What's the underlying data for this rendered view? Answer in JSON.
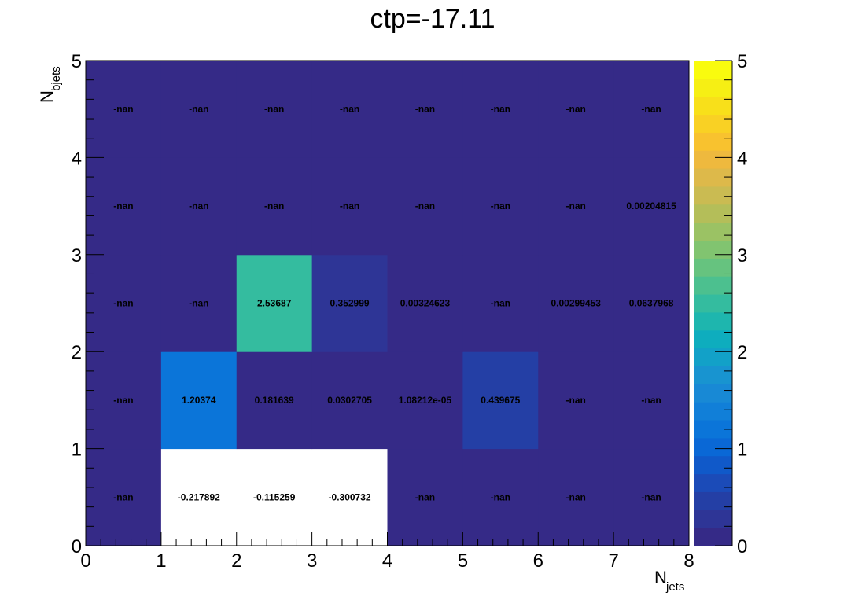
{
  "chart_data": {
    "type": "heatmap",
    "title": "ctp=-17.11",
    "xlabel": {
      "main": "N",
      "sub": "jets"
    },
    "ylabel": {
      "main": "N",
      "sub": "bjets"
    },
    "x_edges": [
      0,
      1,
      2,
      3,
      4,
      5,
      6,
      7,
      8
    ],
    "y_edges": [
      0,
      1,
      2,
      3,
      4,
      5
    ],
    "x_ticks": [
      "0",
      "1",
      "2",
      "3",
      "4",
      "5",
      "6",
      "7",
      "8"
    ],
    "y_ticks": [
      "0",
      "1",
      "2",
      "3",
      "4",
      "5"
    ],
    "xlim": [
      0,
      8
    ],
    "ylim": [
      0,
      5
    ],
    "zlim": [
      0,
      5
    ],
    "z_ticks": [
      "0",
      "1",
      "2",
      "3",
      "4",
      "5"
    ],
    "colormap": "parula",
    "palette": [
      "#352a87",
      "#2e3596",
      "#243fa5",
      "#1b4bb8",
      "#1059c9",
      "#0a68d6",
      "#0b75d9",
      "#117fd8",
      "#1889d5",
      "#1894d0",
      "#12a1c8",
      "#0eadbe",
      "#1eb6ae",
      "#34bc9f",
      "#4cc08f",
      "#66c37f",
      "#81c470",
      "#9bc264",
      "#b4be59",
      "#cabb52",
      "#ddb94a",
      "#eeb93e",
      "#f8c22f",
      "#f9d124",
      "#f8e01a",
      "#f6ef14",
      "#f9fb0e"
    ],
    "empty_color": "#ffffff",
    "cells": [
      {
        "x": 0,
        "y": 0,
        "value": null,
        "label": "-nan"
      },
      {
        "x": 1,
        "y": 0,
        "value": -0.217892,
        "label": "-0.217892"
      },
      {
        "x": 2,
        "y": 0,
        "value": -0.115259,
        "label": "-0.115259"
      },
      {
        "x": 3,
        "y": 0,
        "value": -0.300732,
        "label": "-0.300732"
      },
      {
        "x": 4,
        "y": 0,
        "value": null,
        "label": "-nan"
      },
      {
        "x": 5,
        "y": 0,
        "value": null,
        "label": "-nan"
      },
      {
        "x": 6,
        "y": 0,
        "value": null,
        "label": "-nan"
      },
      {
        "x": 7,
        "y": 0,
        "value": null,
        "label": "-nan"
      },
      {
        "x": 0,
        "y": 1,
        "value": null,
        "label": "-nan"
      },
      {
        "x": 1,
        "y": 1,
        "value": 1.20374,
        "label": "1.20374"
      },
      {
        "x": 2,
        "y": 1,
        "value": 0.181639,
        "label": "0.181639"
      },
      {
        "x": 3,
        "y": 1,
        "value": 0.0302705,
        "label": "0.0302705"
      },
      {
        "x": 4,
        "y": 1,
        "value": 1.08212e-05,
        "label": "1.08212e-05"
      },
      {
        "x": 5,
        "y": 1,
        "value": 0.439675,
        "label": "0.439675"
      },
      {
        "x": 6,
        "y": 1,
        "value": null,
        "label": "-nan"
      },
      {
        "x": 7,
        "y": 1,
        "value": null,
        "label": "-nan"
      },
      {
        "x": 0,
        "y": 2,
        "value": null,
        "label": "-nan"
      },
      {
        "x": 1,
        "y": 2,
        "value": null,
        "label": "-nan"
      },
      {
        "x": 2,
        "y": 2,
        "value": 2.53687,
        "label": "2.53687"
      },
      {
        "x": 3,
        "y": 2,
        "value": 0.352999,
        "label": "0.352999"
      },
      {
        "x": 4,
        "y": 2,
        "value": 0.00324623,
        "label": "0.00324623"
      },
      {
        "x": 5,
        "y": 2,
        "value": null,
        "label": "-nan"
      },
      {
        "x": 6,
        "y": 2,
        "value": 0.00299453,
        "label": "0.00299453"
      },
      {
        "x": 7,
        "y": 2,
        "value": 0.0637968,
        "label": "0.0637968"
      },
      {
        "x": 0,
        "y": 3,
        "value": null,
        "label": "-nan"
      },
      {
        "x": 1,
        "y": 3,
        "value": null,
        "label": "-nan"
      },
      {
        "x": 2,
        "y": 3,
        "value": null,
        "label": "-nan"
      },
      {
        "x": 3,
        "y": 3,
        "value": null,
        "label": "-nan"
      },
      {
        "x": 4,
        "y": 3,
        "value": null,
        "label": "-nan"
      },
      {
        "x": 5,
        "y": 3,
        "value": null,
        "label": "-nan"
      },
      {
        "x": 6,
        "y": 3,
        "value": null,
        "label": "-nan"
      },
      {
        "x": 7,
        "y": 3,
        "value": 0.00204815,
        "label": "0.00204815"
      },
      {
        "x": 0,
        "y": 4,
        "value": null,
        "label": "-nan"
      },
      {
        "x": 1,
        "y": 4,
        "value": null,
        "label": "-nan"
      },
      {
        "x": 2,
        "y": 4,
        "value": null,
        "label": "-nan"
      },
      {
        "x": 3,
        "y": 4,
        "value": null,
        "label": "-nan"
      },
      {
        "x": 4,
        "y": 4,
        "value": null,
        "label": "-nan"
      },
      {
        "x": 5,
        "y": 4,
        "value": null,
        "label": "-nan"
      },
      {
        "x": 6,
        "y": 4,
        "value": null,
        "label": "-nan"
      },
      {
        "x": 7,
        "y": 4,
        "value": null,
        "label": "-nan"
      }
    ]
  }
}
